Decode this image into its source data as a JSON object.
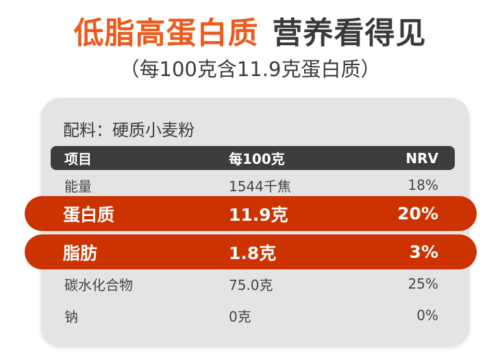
{
  "title": {
    "highlight": "低脂高蛋白质",
    "rest": "营养看得见"
  },
  "subtitle": "（每100克含11.9克蛋白质）",
  "ingredients": "配料：硬质小麦粉",
  "table": {
    "headers": [
      "项目",
      "每100克",
      "NRV"
    ],
    "rows": [
      {
        "item": "能量",
        "per100g": "1544千焦",
        "nrv": "18%"
      },
      {
        "item": "蛋白质",
        "per100g": "11.9克",
        "nrv": "20%"
      },
      {
        "item": "脂肪",
        "per100g": "1.8克",
        "nrv": "3%"
      },
      {
        "item": "碳水化合物",
        "per100g": "75.0克",
        "nrv": "25%"
      },
      {
        "item": "钠",
        "per100g": "0克",
        "nrv": "0%"
      }
    ]
  },
  "colors": {
    "accent": "#ee5a1c",
    "highlight_row": "#cc3300",
    "header": "#3d3d3d"
  }
}
